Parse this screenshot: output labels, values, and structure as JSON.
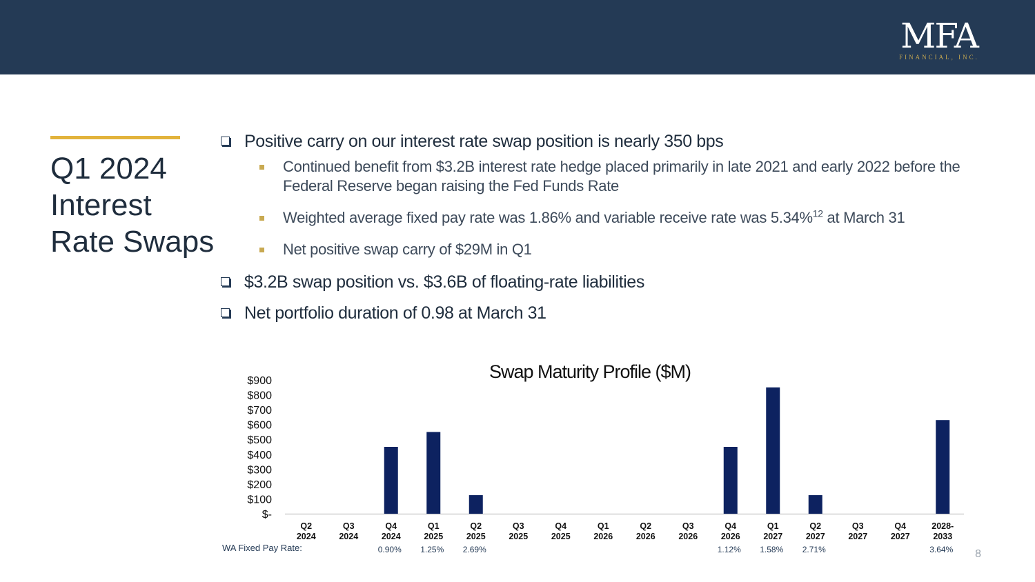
{
  "logo": {
    "main": "MFA",
    "sub": "FINANCIAL, INC."
  },
  "title": {
    "line1": "Q1 2024",
    "line2": "Interest",
    "line3": "Rate Swaps"
  },
  "bullets": {
    "b1": "Positive carry on our interest rate swap position is nearly 350 bps",
    "s1": "Continued benefit from $3.2B interest rate hedge placed primarily in late 2021 and early 2022 before the Federal Reserve began raising the Fed Funds Rate",
    "s2_text": "Weighted average fixed pay rate was 1.86% and variable receive rate was 5.34%",
    "s2_sup": "12",
    "s2_tail": " at March 31",
    "s3": "Net positive swap carry of $29M in Q1",
    "b2": "$3.2B swap position vs. $3.6B of floating-rate liabilities",
    "b3": "Net portfolio duration of 0.98 at March 31"
  },
  "chart_data": {
    "type": "bar",
    "title": "Swap Maturity Profile ($M)",
    "xlabel": "",
    "ylabel": "",
    "ylim": [
      0,
      900
    ],
    "yticks": [
      {
        "value": 0,
        "label": "$-"
      },
      {
        "value": 100,
        "label": "$100"
      },
      {
        "value": 200,
        "label": "$200"
      },
      {
        "value": 300,
        "label": "$300"
      },
      {
        "value": 400,
        "label": "$400"
      },
      {
        "value": 500,
        "label": "$500"
      },
      {
        "value": 600,
        "label": "$600"
      },
      {
        "value": 700,
        "label": "$700"
      },
      {
        "value": 800,
        "label": "$800"
      },
      {
        "value": 900,
        "label": "$900"
      }
    ],
    "categories": [
      [
        "Q2",
        "2024"
      ],
      [
        "Q3",
        "2024"
      ],
      [
        "Q4",
        "2024"
      ],
      [
        "Q1",
        "2025"
      ],
      [
        "Q2",
        "2025"
      ],
      [
        "Q3",
        "2025"
      ],
      [
        "Q4",
        "2025"
      ],
      [
        "Q1",
        "2026"
      ],
      [
        "Q2",
        "2026"
      ],
      [
        "Q3",
        "2026"
      ],
      [
        "Q4",
        "2026"
      ],
      [
        "Q1",
        "2027"
      ],
      [
        "Q2",
        "2027"
      ],
      [
        "Q3",
        "2027"
      ],
      [
        "Q4",
        "2027"
      ],
      [
        "2028-",
        "2033"
      ]
    ],
    "values": [
      0,
      0,
      450,
      550,
      125,
      0,
      0,
      0,
      0,
      0,
      450,
      850,
      125,
      0,
      0,
      630
    ],
    "wa_fixed_pay_label": "WA Fixed Pay Rate:",
    "wa_fixed_pay_rates": [
      "",
      "",
      "0.90%",
      "1.25%",
      "2.69%",
      "",
      "",
      "",
      "",
      "",
      "1.12%",
      "1.58%",
      "2.71%",
      "",
      "",
      "3.64%"
    ],
    "bar_color": "#0d2260",
    "grid": false
  },
  "page_number": "8"
}
